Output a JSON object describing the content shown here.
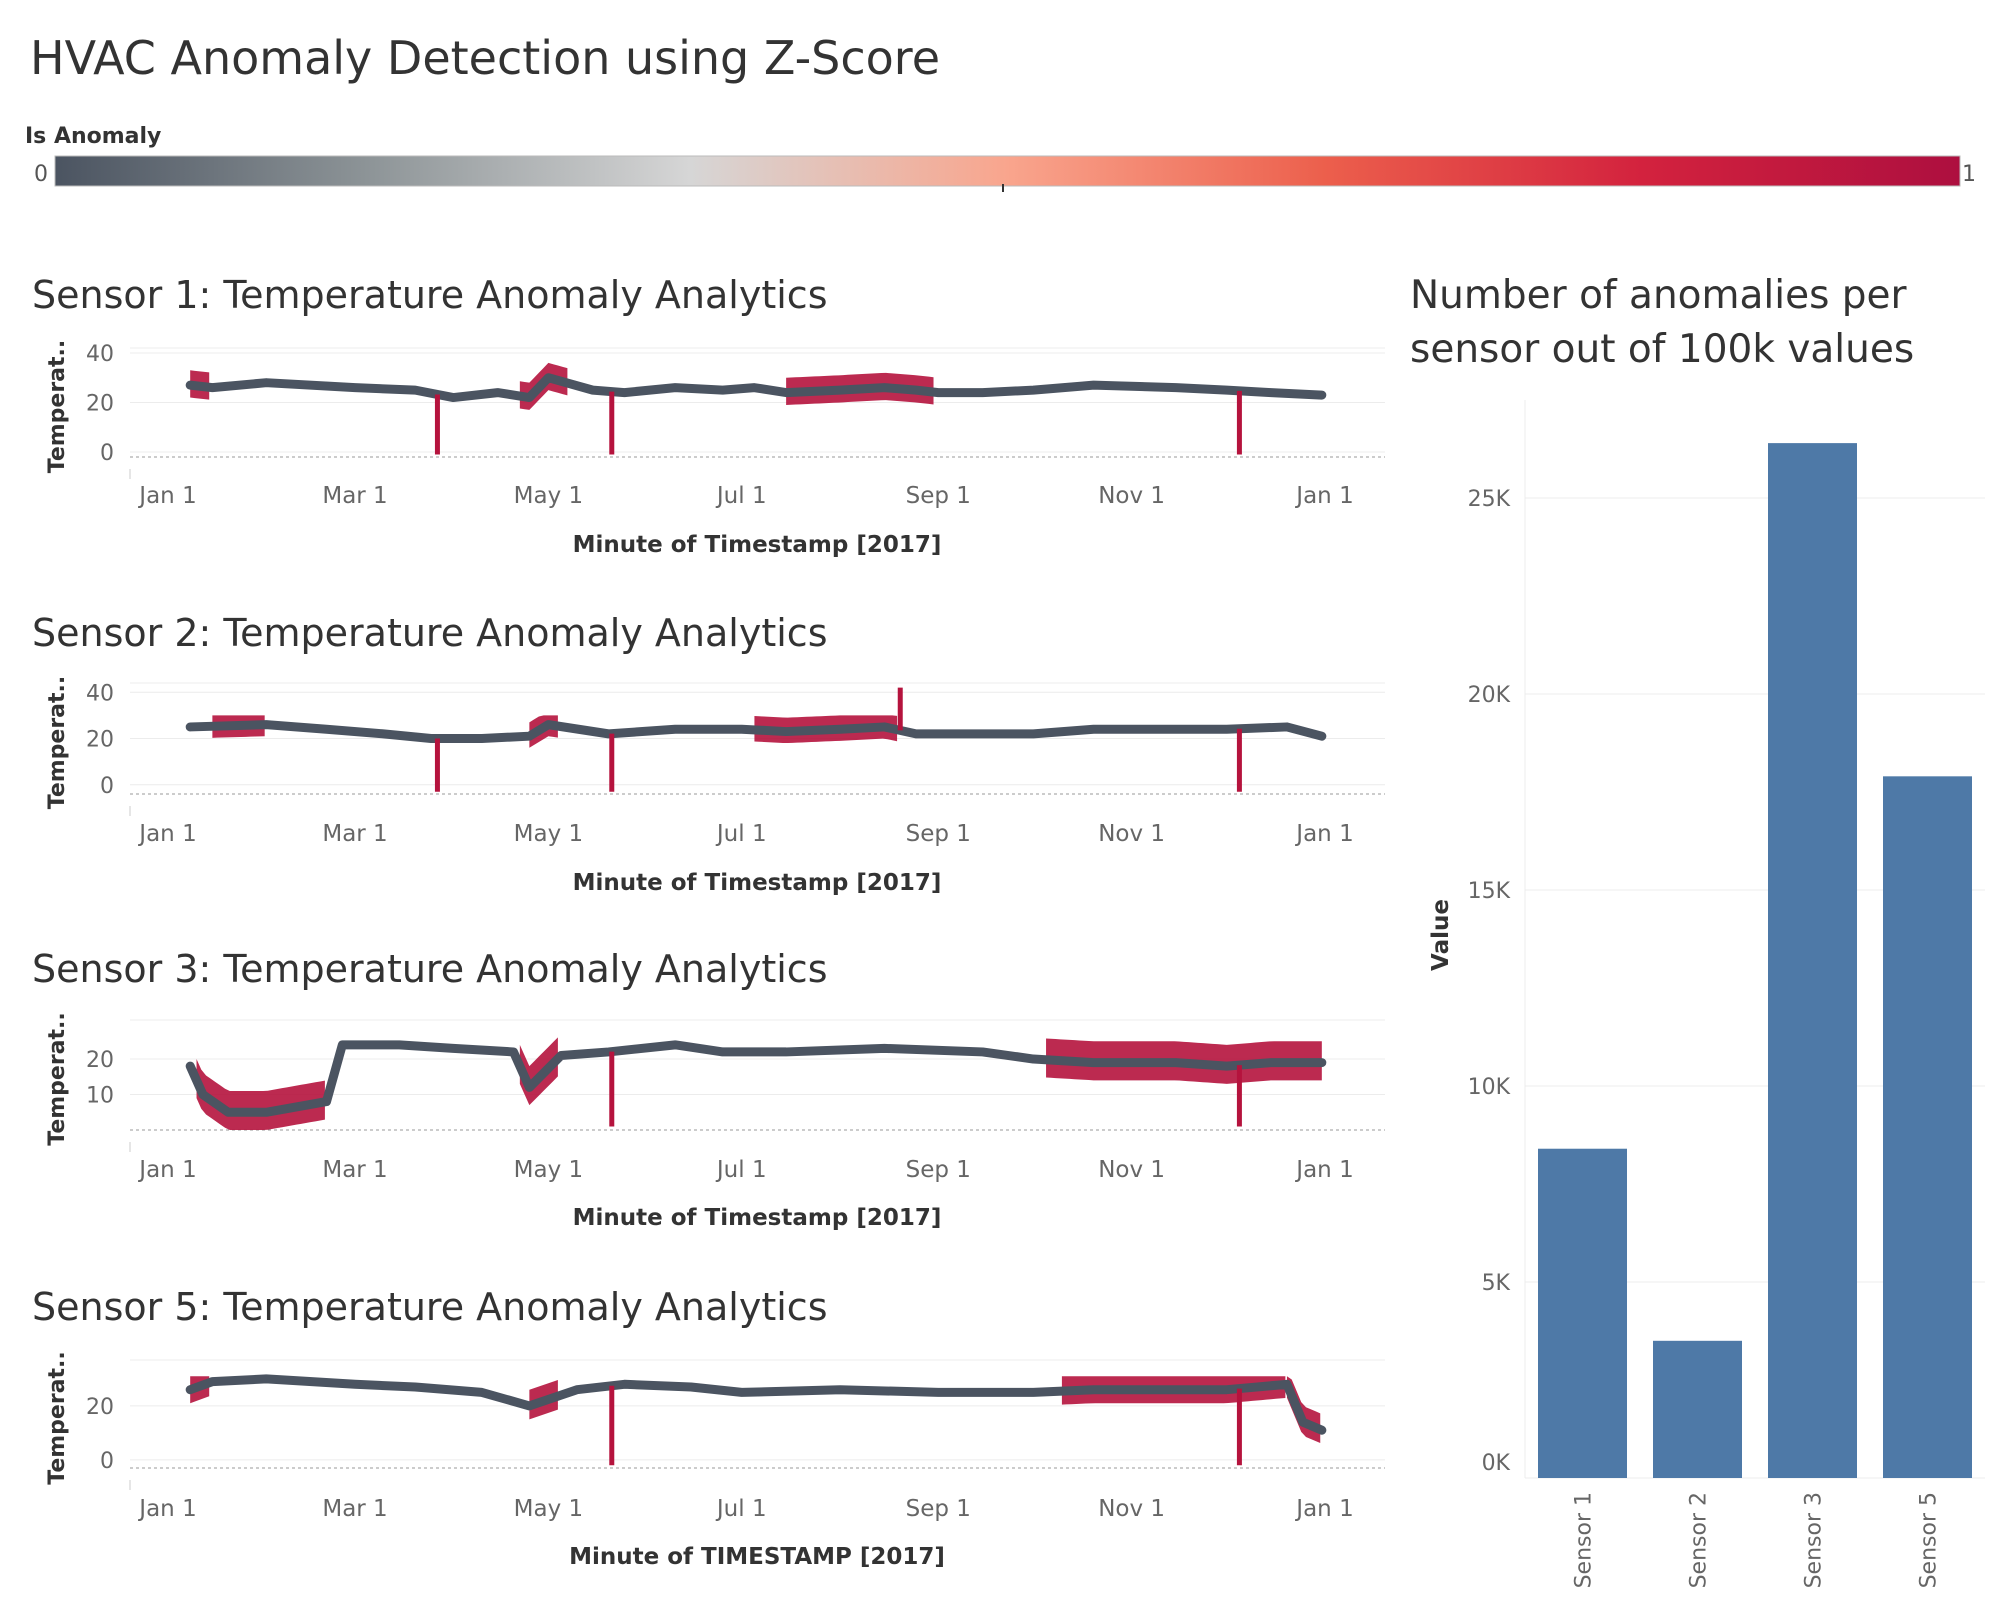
{
  "title": "HVAC Anomaly Detection using Z-Score",
  "legend": {
    "title": "Is Anomaly",
    "min_label": "0",
    "max_label": "1",
    "colors": [
      "#4b5461",
      "#8e9598",
      "#d6d6d6",
      "#f9a58d",
      "#ec5f4c",
      "#d3223e",
      "#ad0f3f"
    ]
  },
  "colors": {
    "normal": "#4b5461",
    "anomaly": "#b5133d",
    "bar": "#4e79a7",
    "grid": "#ececec",
    "axis_text": "#666666"
  },
  "chart_data": [
    {
      "type": "line",
      "title": "Sensor 1: Temperature Anomaly Analytics",
      "xlabel": "Minute of Timestamp [2017]",
      "ylabel": "Temperat..",
      "x_ticks": [
        "Jan 1",
        "Mar 1",
        "May 1",
        "Jul 1",
        "Sep 1",
        "Nov 1",
        "Jan 1"
      ],
      "y_ticks": [
        0,
        20,
        40
      ],
      "ylim": [
        -2,
        42
      ],
      "series": [
        {
          "x": [
            "2017-01-08",
            "2017-01-15",
            "2017-02-01",
            "2017-03-01",
            "2017-03-20",
            "2017-04-01",
            "2017-04-15",
            "2017-04-25",
            "2017-05-01",
            "2017-05-15",
            "2017-05-25",
            "2017-06-10",
            "2017-06-25",
            "2017-07-05",
            "2017-07-15",
            "2017-08-01",
            "2017-08-15",
            "2017-08-25",
            "2017-09-01",
            "2017-09-15",
            "2017-10-01",
            "2017-10-20",
            "2017-11-15",
            "2017-12-01",
            "2017-12-15",
            "2017-12-31"
          ],
          "y": [
            27,
            26,
            28,
            26,
            25,
            22,
            24,
            22,
            30,
            25,
            24,
            26,
            25,
            26,
            24,
            25,
            26,
            25,
            24,
            24,
            25,
            27,
            26,
            25,
            24,
            23
          ],
          "anomaly_ranges": [
            [
              "2017-07-15",
              "2017-08-31"
            ],
            [
              "2017-04-22",
              "2017-05-08"
            ],
            [
              "2017-01-08",
              "2017-01-14"
            ]
          ],
          "anomaly_top": 38,
          "spikes": [
            {
              "x": "2017-03-27",
              "y": -1
            },
            {
              "x": "2017-05-21",
              "y": -1
            },
            {
              "x": "2017-12-05",
              "y": -1
            }
          ]
        }
      ]
    },
    {
      "type": "line",
      "title": "Sensor 2: Temperature Anomaly Analytics",
      "xlabel": "Minute of Timestamp [2017]",
      "ylabel": "Temperat..",
      "x_ticks": [
        "Jan 1",
        "Mar 1",
        "May 1",
        "Jul 1",
        "Sep 1",
        "Nov 1",
        "Jan 1"
      ],
      "y_ticks": [
        0,
        20,
        40
      ],
      "ylim": [
        -4,
        44
      ],
      "series": [
        {
          "x": [
            "2017-01-08",
            "2017-02-01",
            "2017-02-20",
            "2017-03-10",
            "2017-03-25",
            "2017-04-10",
            "2017-04-25",
            "2017-05-01",
            "2017-05-20",
            "2017-06-10",
            "2017-07-01",
            "2017-07-15",
            "2017-08-01",
            "2017-08-15",
            "2017-08-25",
            "2017-09-10",
            "2017-10-01",
            "2017-10-20",
            "2017-11-10",
            "2017-12-01",
            "2017-12-20",
            "2017-12-31"
          ],
          "y": [
            25,
            26,
            24,
            22,
            20,
            20,
            21,
            26,
            22,
            24,
            24,
            23,
            24,
            25,
            22,
            22,
            22,
            24,
            24,
            24,
            25,
            21
          ],
          "anomaly_ranges": [
            [
              "2017-01-15",
              "2017-02-01"
            ],
            [
              "2017-04-25",
              "2017-05-05"
            ],
            [
              "2017-07-05",
              "2017-08-20"
            ]
          ],
          "anomaly_top": 30,
          "spikes": [
            {
              "x": "2017-03-27",
              "y": -3
            },
            {
              "x": "2017-05-21",
              "y": -3
            },
            {
              "x": "2017-12-05",
              "y": -3
            },
            {
              "x": "2017-08-20",
              "y": 42
            }
          ]
        }
      ]
    },
    {
      "type": "line",
      "title": "Sensor 3: Temperature Anomaly Analytics",
      "xlabel": "Minute of Timestamp [2017]",
      "ylabel": "Temperat..",
      "x_ticks": [
        "Jan 1",
        "Mar 1",
        "May 1",
        "Jul 1",
        "Sep 1",
        "Nov 1",
        "Jan 1"
      ],
      "y_ticks": [
        10,
        20
      ],
      "ylim": [
        0,
        31
      ],
      "series": [
        {
          "x": [
            "2017-01-08",
            "2017-01-12",
            "2017-01-20",
            "2017-02-01",
            "2017-02-20",
            "2017-02-25",
            "2017-03-15",
            "2017-04-01",
            "2017-04-20",
            "2017-04-25",
            "2017-05-05",
            "2017-05-20",
            "2017-06-10",
            "2017-06-25",
            "2017-07-15",
            "2017-08-15",
            "2017-09-15",
            "2017-10-01",
            "2017-10-20",
            "2017-11-15",
            "2017-12-01",
            "2017-12-15",
            "2017-12-31"
          ],
          "y": [
            18,
            10,
            5,
            5,
            8,
            24,
            24,
            23,
            22,
            12,
            21,
            22,
            24,
            22,
            22,
            23,
            22,
            20,
            19,
            19,
            18,
            19,
            19
          ],
          "anomaly_ranges": [
            [
              "2017-01-10",
              "2017-02-20"
            ],
            [
              "2017-04-22",
              "2017-05-05"
            ],
            [
              "2017-10-05",
              "2017-12-31"
            ]
          ],
          "anomaly_top": 27,
          "spikes": [
            {
              "x": "2017-05-21",
              "y": 1
            },
            {
              "x": "2017-12-05",
              "y": 1
            }
          ]
        }
      ]
    },
    {
      "type": "line",
      "title": "Sensor 5: Temperature Anomaly Analytics",
      "xlabel": "Minute of TIMESTAMP [2017]",
      "ylabel": "Temperat..",
      "x_ticks": [
        "Jan 1",
        "Mar 1",
        "May 1",
        "Jul 1",
        "Sep 1",
        "Nov 1",
        "Jan 1"
      ],
      "y_ticks": [
        0,
        20
      ],
      "ylim": [
        -3,
        37
      ],
      "series": [
        {
          "x": [
            "2017-01-08",
            "2017-01-15",
            "2017-02-01",
            "2017-03-01",
            "2017-03-20",
            "2017-04-10",
            "2017-04-25",
            "2017-05-10",
            "2017-05-25",
            "2017-06-15",
            "2017-07-01",
            "2017-08-01",
            "2017-09-01",
            "2017-10-01",
            "2017-10-20",
            "2017-11-10",
            "2017-12-01",
            "2017-12-20",
            "2017-12-25",
            "2017-12-31"
          ],
          "y": [
            26,
            29,
            30,
            28,
            27,
            25,
            20,
            26,
            28,
            27,
            25,
            26,
            25,
            25,
            26,
            26,
            26,
            28,
            14,
            11
          ],
          "anomaly_ranges": [
            [
              "2017-01-08",
              "2017-01-14"
            ],
            [
              "2017-04-25",
              "2017-05-05"
            ],
            [
              "2017-10-10",
              "2017-12-20"
            ],
            [
              "2017-12-20",
              "2017-12-31"
            ]
          ],
          "anomaly_top": 31,
          "spikes": [
            {
              "x": "2017-05-21",
              "y": -2
            },
            {
              "x": "2017-12-05",
              "y": -2
            }
          ]
        }
      ]
    },
    {
      "type": "bar",
      "title": "Number of anomalies per sensor out of 100k values",
      "title_lines": [
        "Number of anomalies per",
        "sensor out of 100k values"
      ],
      "ylabel": "Value",
      "categories": [
        "Sensor 1",
        "Sensor 2",
        "Sensor 3",
        "Sensor 5"
      ],
      "values": [
        8400,
        3500,
        26400,
        17900
      ],
      "ylim": [
        0,
        27500
      ],
      "y_ticks": [
        0,
        5000,
        10000,
        15000,
        20000,
        25000
      ],
      "y_tick_labels": [
        "0K",
        "5K",
        "10K",
        "15K",
        "20K",
        "25K"
      ]
    }
  ]
}
